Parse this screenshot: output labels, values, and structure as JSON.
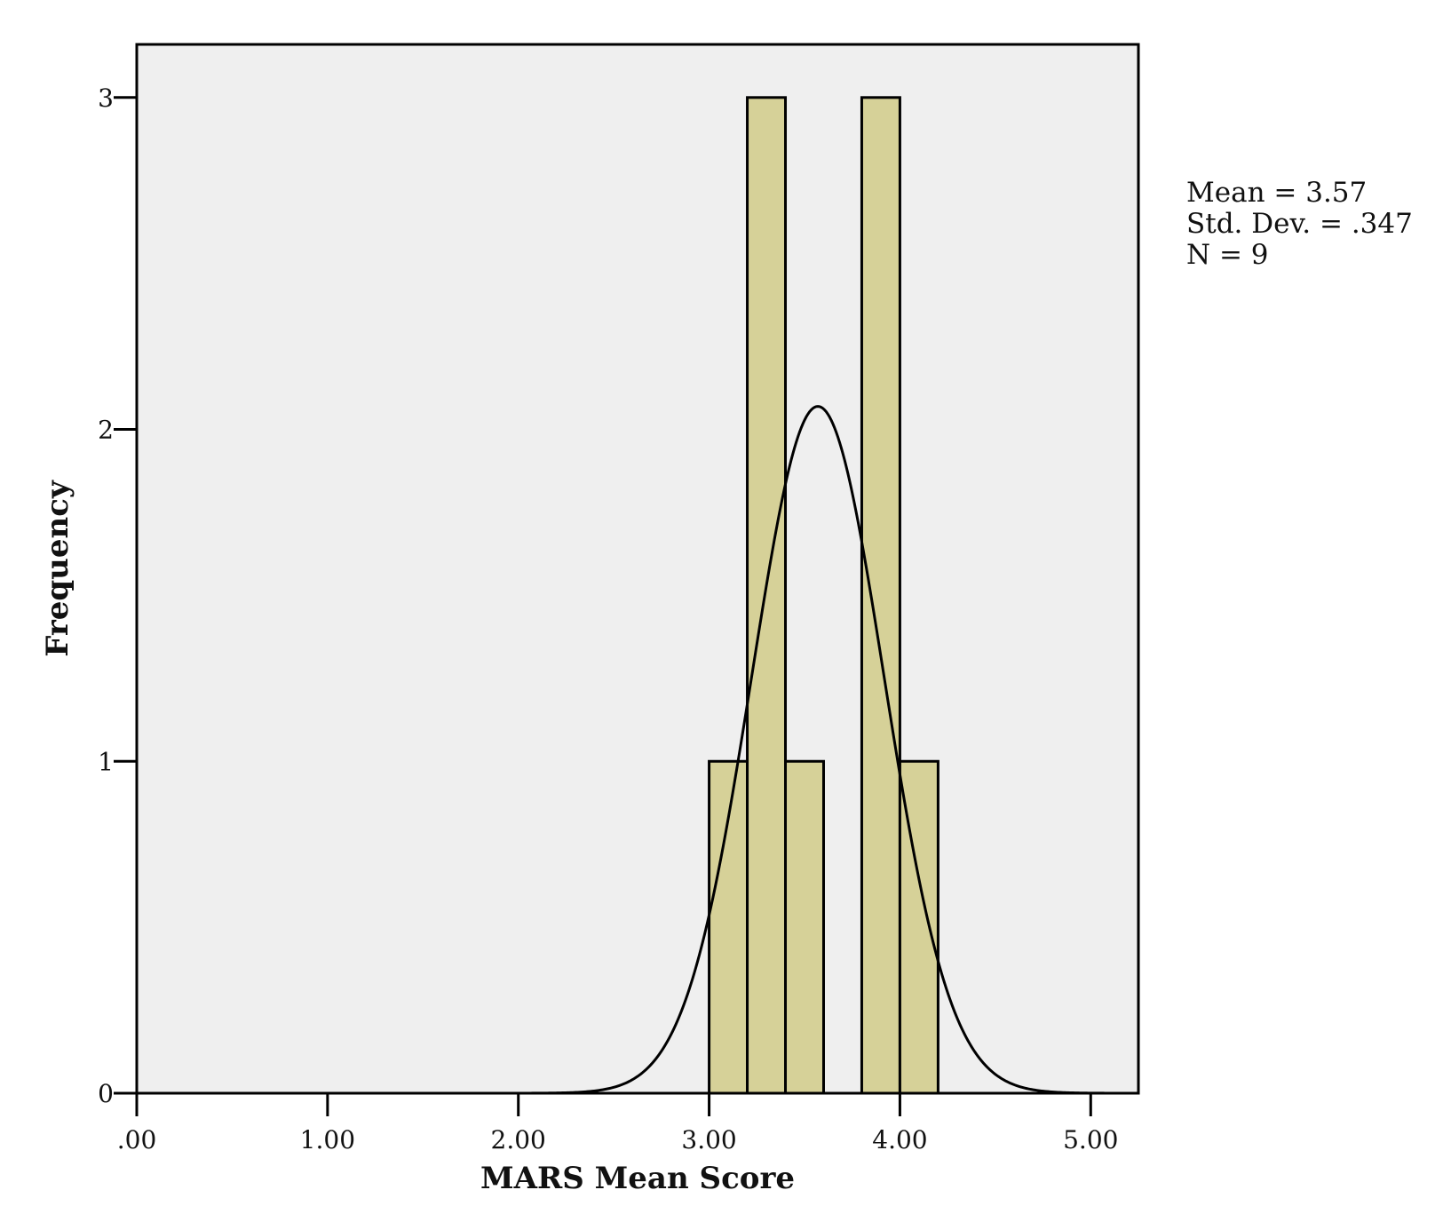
{
  "chart_data": {
    "type": "bar",
    "subtype": "histogram",
    "title": "",
    "xlabel": "MARS Mean Score",
    "ylabel": "Frequency",
    "xlim": [
      0,
      5.25
    ],
    "ylim": [
      0,
      3.16
    ],
    "x_ticks": [
      0,
      1,
      2,
      3,
      4,
      5
    ],
    "x_tick_labels": [
      ".00",
      "1.00",
      "2.00",
      "3.00",
      "4.00",
      "5.00"
    ],
    "y_ticks": [
      0,
      1,
      2,
      3
    ],
    "y_tick_labels": [
      "0",
      "1",
      "2",
      "3"
    ],
    "bins": [
      {
        "from": 3.0,
        "to": 3.2,
        "count": 1
      },
      {
        "from": 3.2,
        "to": 3.4,
        "count": 3
      },
      {
        "from": 3.4,
        "to": 3.6,
        "count": 1
      },
      {
        "from": 3.6,
        "to": 3.8,
        "count": 0
      },
      {
        "from": 3.8,
        "to": 4.0,
        "count": 3
      },
      {
        "from": 4.0,
        "to": 4.2,
        "count": 1
      }
    ],
    "normal_curve": {
      "mean": 3.57,
      "sd": 0.347,
      "n": 9,
      "bin_width": 0.2
    },
    "stats": [
      "Mean = 3.57",
      "Std. Dev. = .347",
      "N = 9"
    ],
    "bar_color": "#d6d198",
    "plot_background": "#efefef",
    "grid": false,
    "legend": "none"
  }
}
